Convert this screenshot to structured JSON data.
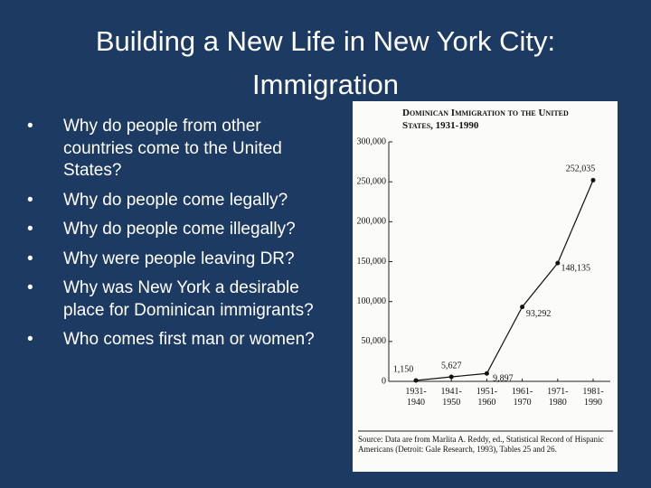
{
  "slide": {
    "title": "Building a New Life in New York City: Immigration",
    "bullets": [
      "Why do people from other countries come to the United States?",
      "Why do people come legally?",
      "Why do people come illegally?",
      "Why were people leaving DR?",
      "Why was New York a desirable place for Dominican immigrants?",
      "Who comes first man or women?"
    ]
  },
  "chart_data": {
    "type": "line",
    "title": "Dominican Immigration to the United States, 1931-1990",
    "categories": [
      "1931-1940",
      "1941-1950",
      "1951-1960",
      "1961-1970",
      "1971-1980",
      "1981-1990"
    ],
    "values": [
      1150,
      5627,
      9897,
      93292,
      148135,
      252035
    ],
    "value_labels": [
      "1,150",
      "5,627",
      "9,897",
      "93,292",
      "148,135",
      "252,035"
    ],
    "color": "#111111",
    "ylim": [
      0,
      300000
    ],
    "yticks": [
      0,
      {
        "value": 50000,
        "label": "50,000"
      },
      {
        "value": 100000,
        "label": "100,000"
      },
      {
        "value": 150000,
        "label": "150,000"
      },
      {
        "value": 200000,
        "label": "200,000"
      },
      {
        "value": 250000,
        "label": "250,000"
      },
      {
        "value": 300000,
        "label": "300,000"
      }
    ],
    "grid": false,
    "source": "Source: Data are from Marlita A. Reddy, ed., Statistical Record of Hispanic Americans (Detroit: Gale Research, 1993), Tables 25 and 26."
  }
}
